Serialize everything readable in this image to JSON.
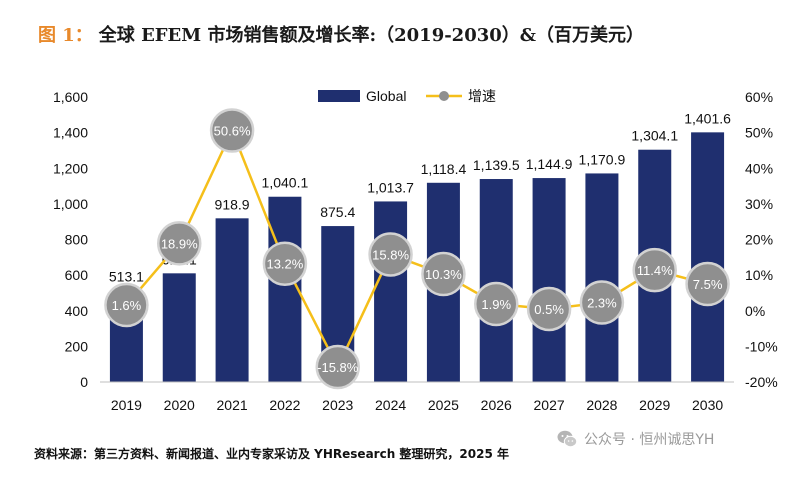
{
  "title": {
    "prefix": "图 1：",
    "text": "全球 EFEM 市场销售额及增长率:（2019-2030）&（百万美元）"
  },
  "source_note": "资料来源：第三方资料、新闻报道、业内专家采访及 YHResearch 整理研究，2025 年",
  "watermark": {
    "text": "公众号 · 恒州诚思YH",
    "icon": "wechat-icon"
  },
  "colors": {
    "bar": "#1f2f6f",
    "line": "#f5bf1a",
    "marker_fill": "#8f8f8f",
    "marker_stroke": "#d2d2d2",
    "title_prefix": "#e8892b"
  },
  "chart_data": {
    "type": "bar",
    "categories": [
      "2019",
      "2020",
      "2021",
      "2022",
      "2023",
      "2024",
      "2025",
      "2026",
      "2027",
      "2028",
      "2029",
      "2030"
    ],
    "series": [
      {
        "name": "Global",
        "type": "bar",
        "axis": "left",
        "values": [
          513.1,
          610.1,
          918.9,
          1040.1,
          875.4,
          1013.7,
          1118.4,
          1139.5,
          1144.9,
          1170.9,
          1304.1,
          1401.6
        ],
        "labels": [
          "513.1",
          "610.1",
          "918.9",
          "1,040.1",
          "875.4",
          "1,013.7",
          "1,118.4",
          "1,139.5",
          "1,144.9",
          "1,170.9",
          "1,304.1",
          "1,401.6"
        ]
      },
      {
        "name": "增速",
        "type": "line",
        "axis": "right",
        "values": [
          1.6,
          18.9,
          50.6,
          13.2,
          -15.8,
          15.8,
          10.3,
          1.9,
          0.5,
          2.3,
          11.4,
          7.5
        ],
        "labels": [
          "1.6%",
          "18.9%",
          "50.6%",
          "13.2%",
          "-15.8%",
          "15.8%",
          "10.3%",
          "1.9%",
          "0.5%",
          "2.3%",
          "11.4%",
          "7.5%"
        ]
      }
    ],
    "y_left": {
      "min": 0,
      "max": 1600,
      "ticks": [
        0,
        200,
        400,
        600,
        800,
        1000,
        1200,
        1400,
        1600
      ],
      "tick_labels": [
        "0",
        "200",
        "400",
        "600",
        "800",
        "1,000",
        "1,200",
        "1,400",
        "1,600"
      ]
    },
    "y_right": {
      "min": -20,
      "max": 60,
      "ticks": [
        -20,
        -10,
        0,
        10,
        20,
        30,
        40,
        50,
        60
      ],
      "tick_labels": [
        "-20%",
        "-10%",
        "0%",
        "10%",
        "20%",
        "30%",
        "40%",
        "50%",
        "60%"
      ]
    },
    "legend": {
      "position": "top-right"
    },
    "grid": false
  }
}
